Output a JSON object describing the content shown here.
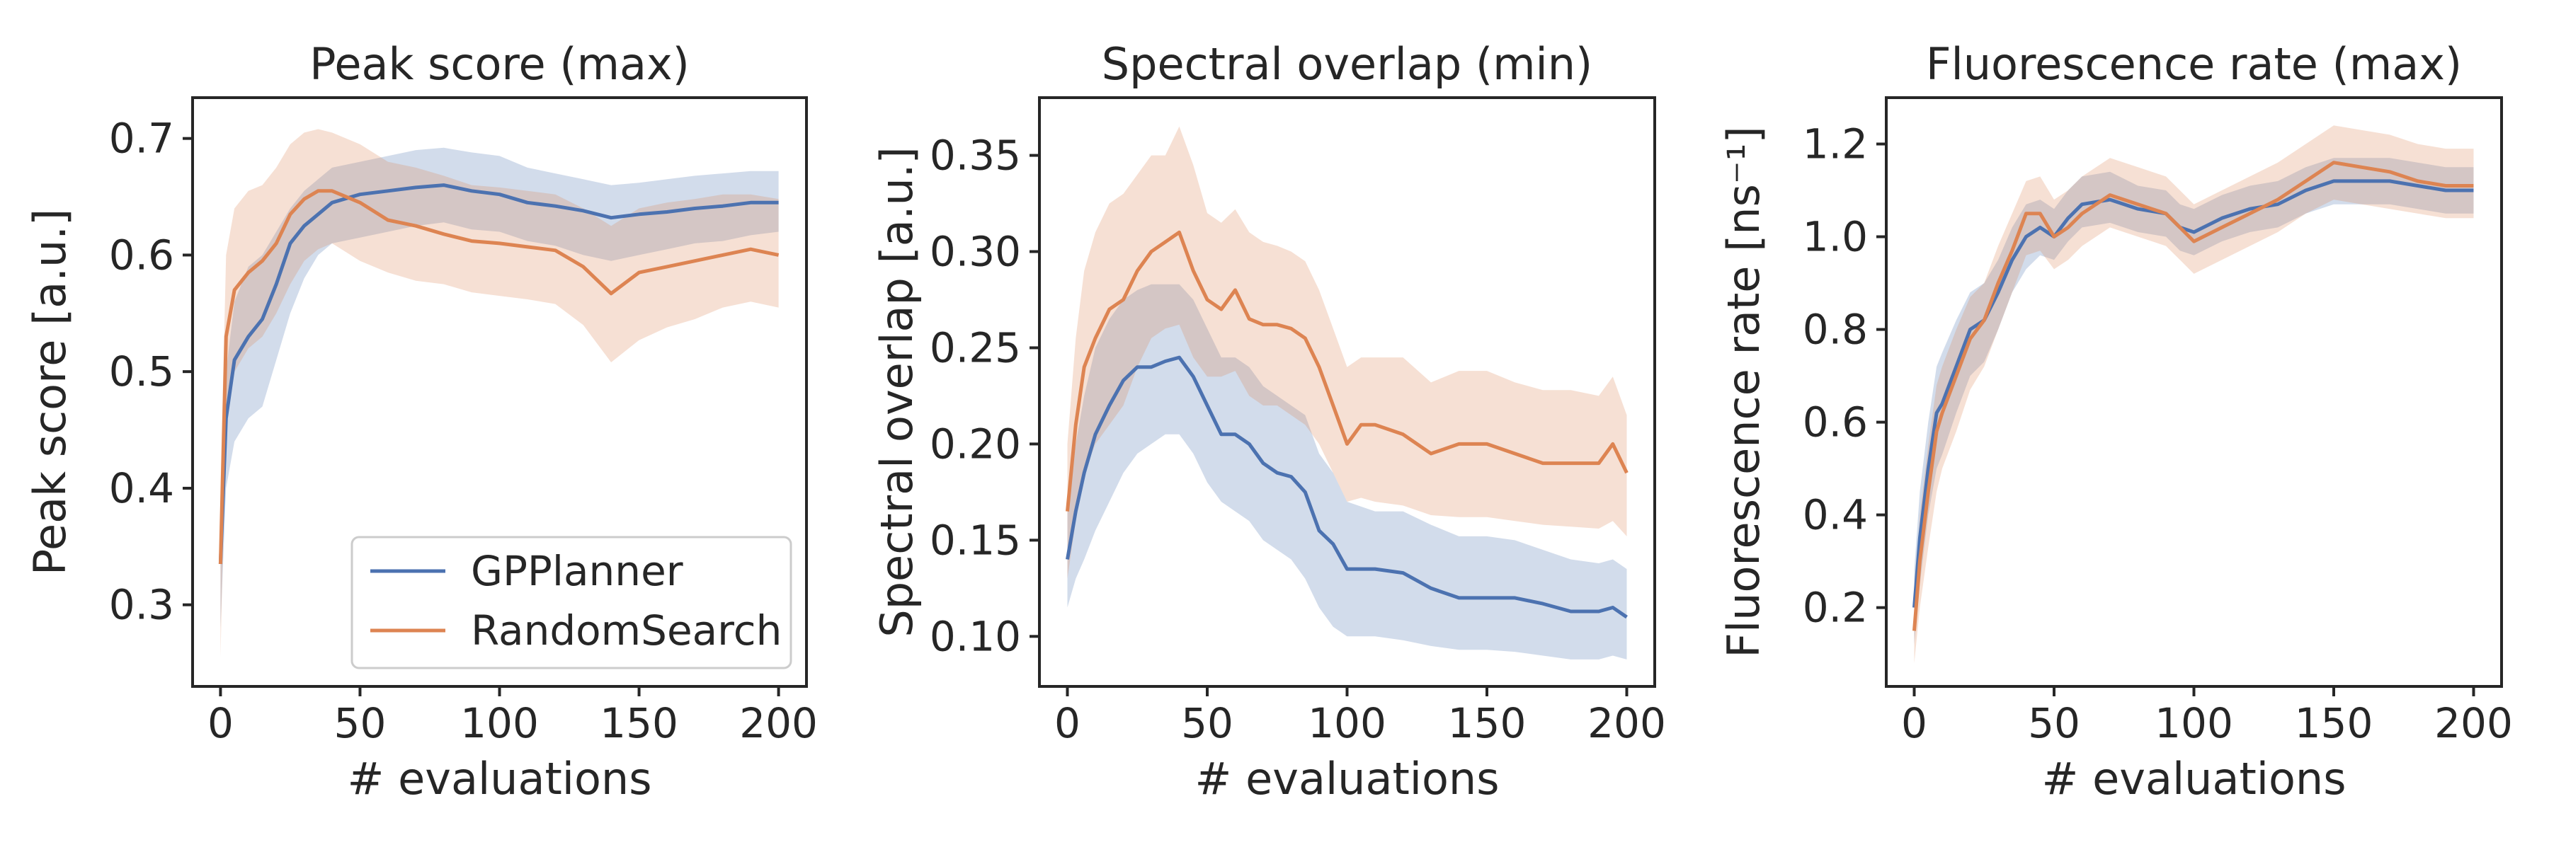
{
  "colors": {
    "gpplanner": "#4c72b0",
    "randomsearch": "#dd8452",
    "axis": "#262626"
  },
  "legend": {
    "entries": [
      "GPPlanner",
      "RandomSearch"
    ],
    "placement": "lower-right",
    "shown_in_panel": 0
  },
  "chart_data": [
    {
      "type": "line",
      "title": "Peak score (max)",
      "xlabel": "# evaluations",
      "ylabel": "Peak score [a.u.]",
      "xlim": [
        -10,
        210
      ],
      "ylim": [
        0.23,
        0.735
      ],
      "xticks": [
        0,
        50,
        100,
        150,
        200
      ],
      "yticks": [
        0.3,
        0.4,
        0.5,
        0.6,
        0.7
      ],
      "yticklabels": [
        "0.3",
        "0.4",
        "0.5",
        "0.6",
        "0.7"
      ],
      "grid": false,
      "series": [
        {
          "name": "GPPlanner",
          "x": [
            0,
            2,
            5,
            10,
            15,
            20,
            25,
            30,
            35,
            40,
            50,
            60,
            70,
            80,
            90,
            100,
            110,
            120,
            130,
            140,
            150,
            160,
            170,
            180,
            190,
            200
          ],
          "y": [
            0.335,
            0.46,
            0.51,
            0.53,
            0.545,
            0.575,
            0.61,
            0.625,
            0.635,
            0.645,
            0.652,
            0.655,
            0.658,
            0.66,
            0.655,
            0.652,
            0.645,
            0.642,
            0.638,
            0.632,
            0.635,
            0.637,
            0.64,
            0.642,
            0.645,
            0.645
          ],
          "lower": [
            0.28,
            0.4,
            0.44,
            0.46,
            0.47,
            0.51,
            0.55,
            0.58,
            0.6,
            0.61,
            0.615,
            0.62,
            0.625,
            0.628,
            0.622,
            0.62,
            0.612,
            0.608,
            0.6,
            0.595,
            0.6,
            0.605,
            0.61,
            0.612,
            0.617,
            0.62
          ],
          "upper": [
            0.38,
            0.5,
            0.56,
            0.59,
            0.6,
            0.62,
            0.64,
            0.655,
            0.665,
            0.675,
            0.68,
            0.685,
            0.69,
            0.692,
            0.688,
            0.685,
            0.675,
            0.67,
            0.665,
            0.66,
            0.662,
            0.665,
            0.668,
            0.67,
            0.672,
            0.672
          ]
        },
        {
          "name": "RandomSearch",
          "x": [
            0,
            2,
            5,
            10,
            15,
            20,
            25,
            30,
            35,
            40,
            50,
            60,
            70,
            80,
            90,
            100,
            110,
            120,
            130,
            140,
            150,
            160,
            170,
            180,
            190,
            200
          ],
          "y": [
            0.335,
            0.53,
            0.57,
            0.585,
            0.595,
            0.61,
            0.635,
            0.648,
            0.655,
            0.655,
            0.645,
            0.63,
            0.625,
            0.618,
            0.612,
            0.61,
            0.607,
            0.604,
            0.59,
            0.567,
            0.585,
            0.59,
            0.595,
            0.6,
            0.605,
            0.6
          ],
          "lower": [
            0.255,
            0.47,
            0.5,
            0.52,
            0.53,
            0.55,
            0.575,
            0.595,
            0.605,
            0.61,
            0.595,
            0.585,
            0.578,
            0.575,
            0.568,
            0.565,
            0.562,
            0.558,
            0.54,
            0.508,
            0.527,
            0.538,
            0.545,
            0.555,
            0.56,
            0.555
          ],
          "upper": [
            0.4,
            0.6,
            0.64,
            0.655,
            0.66,
            0.675,
            0.695,
            0.705,
            0.708,
            0.705,
            0.695,
            0.68,
            0.675,
            0.668,
            0.66,
            0.658,
            0.655,
            0.652,
            0.64,
            0.625,
            0.64,
            0.645,
            0.648,
            0.652,
            0.652,
            0.648
          ]
        }
      ]
    },
    {
      "type": "line",
      "title": "Spectral overlap (min)",
      "xlabel": "# evaluations",
      "ylabel": "Spectral overlap [a.u.]",
      "xlim": [
        -10,
        210
      ],
      "ylim": [
        0.074,
        0.38
      ],
      "xticks": [
        0,
        50,
        100,
        150,
        200
      ],
      "yticks": [
        0.1,
        0.15,
        0.2,
        0.25,
        0.3,
        0.35
      ],
      "yticklabels": [
        "0.10",
        "0.15",
        "0.20",
        "0.25",
        "0.30",
        "0.35"
      ],
      "grid": false,
      "series": [
        {
          "name": "GPPlanner",
          "x": [
            0,
            3,
            6,
            10,
            15,
            20,
            25,
            30,
            35,
            40,
            45,
            50,
            55,
            60,
            65,
            70,
            75,
            80,
            85,
            90,
            95,
            100,
            110,
            120,
            130,
            140,
            150,
            160,
            170,
            180,
            190,
            195,
            200
          ],
          "y": [
            0.14,
            0.165,
            0.185,
            0.205,
            0.22,
            0.233,
            0.24,
            0.24,
            0.243,
            0.245,
            0.235,
            0.22,
            0.205,
            0.205,
            0.2,
            0.19,
            0.185,
            0.183,
            0.175,
            0.155,
            0.148,
            0.135,
            0.135,
            0.133,
            0.125,
            0.12,
            0.12,
            0.12,
            0.117,
            0.113,
            0.113,
            0.115,
            0.11
          ],
          "lower": [
            0.115,
            0.13,
            0.14,
            0.155,
            0.17,
            0.185,
            0.195,
            0.2,
            0.205,
            0.205,
            0.195,
            0.18,
            0.17,
            0.165,
            0.16,
            0.15,
            0.145,
            0.14,
            0.13,
            0.115,
            0.105,
            0.1,
            0.1,
            0.098,
            0.095,
            0.093,
            0.093,
            0.092,
            0.09,
            0.088,
            0.088,
            0.09,
            0.088
          ],
          "upper": [
            0.165,
            0.2,
            0.225,
            0.25,
            0.265,
            0.275,
            0.28,
            0.283,
            0.283,
            0.283,
            0.275,
            0.26,
            0.245,
            0.245,
            0.24,
            0.23,
            0.225,
            0.22,
            0.215,
            0.195,
            0.185,
            0.17,
            0.165,
            0.165,
            0.158,
            0.152,
            0.152,
            0.15,
            0.145,
            0.14,
            0.138,
            0.14,
            0.135
          ]
        },
        {
          "name": "RandomSearch",
          "x": [
            0,
            3,
            6,
            10,
            15,
            20,
            25,
            30,
            35,
            40,
            45,
            50,
            55,
            60,
            65,
            70,
            75,
            80,
            85,
            90,
            95,
            100,
            105,
            110,
            120,
            130,
            140,
            150,
            160,
            170,
            180,
            190,
            195,
            200
          ],
          "y": [
            0.165,
            0.21,
            0.24,
            0.255,
            0.27,
            0.275,
            0.29,
            0.3,
            0.305,
            0.31,
            0.29,
            0.275,
            0.27,
            0.28,
            0.265,
            0.262,
            0.262,
            0.26,
            0.255,
            0.24,
            0.22,
            0.2,
            0.21,
            0.21,
            0.205,
            0.195,
            0.2,
            0.2,
            0.195,
            0.19,
            0.19,
            0.19,
            0.2,
            0.185
          ],
          "lower": [
            0.13,
            0.16,
            0.185,
            0.2,
            0.21,
            0.22,
            0.24,
            0.255,
            0.26,
            0.262,
            0.245,
            0.235,
            0.235,
            0.238,
            0.225,
            0.22,
            0.22,
            0.215,
            0.21,
            0.2,
            0.185,
            0.17,
            0.172,
            0.17,
            0.168,
            0.163,
            0.162,
            0.162,
            0.16,
            0.158,
            0.157,
            0.156,
            0.16,
            0.152
          ],
          "upper": [
            0.2,
            0.255,
            0.29,
            0.31,
            0.325,
            0.33,
            0.34,
            0.35,
            0.35,
            0.365,
            0.345,
            0.32,
            0.315,
            0.322,
            0.31,
            0.305,
            0.303,
            0.3,
            0.295,
            0.28,
            0.26,
            0.24,
            0.245,
            0.245,
            0.245,
            0.232,
            0.238,
            0.238,
            0.232,
            0.228,
            0.228,
            0.225,
            0.235,
            0.215
          ]
        }
      ]
    },
    {
      "type": "line",
      "title": "Fluorescence rate (max)",
      "xlabel": "# evaluations",
      "ylabel": "Fluorescence rate [ns⁻¹]",
      "xlim": [
        -10,
        210
      ],
      "ylim": [
        0.03,
        1.3
      ],
      "xticks": [
        0,
        50,
        100,
        150,
        200
      ],
      "yticks": [
        0.2,
        0.4,
        0.6,
        0.8,
        1.0,
        1.2
      ],
      "yticklabels": [
        "0.2",
        "0.4",
        "0.6",
        "0.8",
        "1.0",
        "1.2"
      ],
      "grid": false,
      "series": [
        {
          "name": "GPPlanner",
          "x": [
            0,
            2,
            5,
            8,
            10,
            15,
            20,
            25,
            30,
            35,
            40,
            45,
            50,
            55,
            60,
            70,
            80,
            90,
            95,
            100,
            110,
            120,
            130,
            140,
            150,
            160,
            170,
            180,
            190,
            200
          ],
          "y": [
            0.2,
            0.35,
            0.5,
            0.62,
            0.64,
            0.72,
            0.8,
            0.82,
            0.88,
            0.95,
            1.0,
            1.02,
            1.0,
            1.04,
            1.07,
            1.08,
            1.06,
            1.05,
            1.02,
            1.01,
            1.04,
            1.06,
            1.07,
            1.1,
            1.12,
            1.12,
            1.12,
            1.11,
            1.1,
            1.1
          ],
          "lower": [
            0.12,
            0.25,
            0.4,
            0.5,
            0.53,
            0.62,
            0.7,
            0.73,
            0.8,
            0.88,
            0.93,
            0.96,
            0.95,
            0.99,
            1.02,
            1.03,
            1.01,
            1.0,
            0.97,
            0.96,
            0.99,
            1.01,
            1.02,
            1.05,
            1.07,
            1.07,
            1.07,
            1.06,
            1.05,
            1.05
          ],
          "upper": [
            0.28,
            0.45,
            0.6,
            0.72,
            0.75,
            0.82,
            0.88,
            0.9,
            0.95,
            1.02,
            1.07,
            1.08,
            1.06,
            1.1,
            1.13,
            1.14,
            1.11,
            1.1,
            1.07,
            1.06,
            1.09,
            1.11,
            1.12,
            1.15,
            1.17,
            1.17,
            1.17,
            1.16,
            1.15,
            1.15
          ]
        },
        {
          "name": "RandomSearch",
          "x": [
            0,
            2,
            5,
            8,
            10,
            15,
            20,
            25,
            30,
            35,
            40,
            45,
            50,
            55,
            60,
            70,
            80,
            90,
            95,
            100,
            110,
            120,
            130,
            140,
            150,
            160,
            170,
            180,
            190,
            200
          ],
          "y": [
            0.15,
            0.3,
            0.45,
            0.58,
            0.62,
            0.7,
            0.78,
            0.82,
            0.9,
            0.97,
            1.05,
            1.05,
            1.0,
            1.02,
            1.05,
            1.09,
            1.07,
            1.05,
            1.02,
            0.99,
            1.02,
            1.05,
            1.08,
            1.12,
            1.16,
            1.15,
            1.14,
            1.12,
            1.11,
            1.11
          ],
          "lower": [
            0.08,
            0.2,
            0.33,
            0.45,
            0.5,
            0.58,
            0.67,
            0.72,
            0.8,
            0.88,
            0.96,
            0.97,
            0.93,
            0.95,
            0.98,
            1.02,
            1.0,
            0.98,
            0.95,
            0.92,
            0.95,
            0.98,
            1.01,
            1.05,
            1.08,
            1.07,
            1.06,
            1.05,
            1.04,
            1.04
          ],
          "upper": [
            0.22,
            0.4,
            0.55,
            0.68,
            0.72,
            0.8,
            0.87,
            0.9,
            0.98,
            1.05,
            1.12,
            1.13,
            1.08,
            1.1,
            1.13,
            1.17,
            1.15,
            1.13,
            1.1,
            1.07,
            1.1,
            1.13,
            1.16,
            1.2,
            1.24,
            1.23,
            1.22,
            1.2,
            1.19,
            1.19
          ]
        }
      ]
    }
  ]
}
